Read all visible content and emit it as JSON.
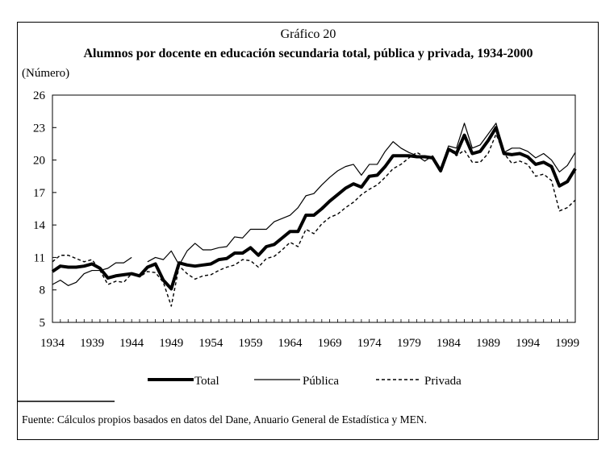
{
  "chart_data": {
    "type": "line",
    "supertitle": "Gráfico 20",
    "title": "Alumnos por docente en educación secundaria total, pública y privada, 1934-2000",
    "ylabel": "(Número)",
    "xlabel": "",
    "ylim": [
      5,
      26
    ],
    "yticks": [
      5,
      8,
      11,
      14,
      17,
      20,
      23,
      26
    ],
    "xlim": [
      1934,
      2000
    ],
    "xticks": [
      1934,
      1939,
      1944,
      1949,
      1954,
      1959,
      1964,
      1969,
      1974,
      1979,
      1984,
      1989,
      1994,
      1999
    ],
    "legend_position": "bottom",
    "series": [
      {
        "name": "Total",
        "style": "thick",
        "x": [
          1934,
          1935,
          1936,
          1937,
          1938,
          1939,
          1940,
          1941,
          1942,
          1943,
          1944,
          1945,
          1946,
          1947,
          1948,
          1949,
          1950,
          1951,
          1952,
          1953,
          1954,
          1955,
          1956,
          1957,
          1958,
          1959,
          1960,
          1961,
          1962,
          1963,
          1964,
          1965,
          1966,
          1967,
          1968,
          1969,
          1970,
          1971,
          1972,
          1973,
          1974,
          1975,
          1976,
          1977,
          1978,
          1979,
          1980,
          1981,
          1982,
          1983,
          1984,
          1985,
          1986,
          1987,
          1988,
          1989,
          1990,
          1991,
          1992,
          1993,
          1994,
          1995,
          1996,
          1997,
          1998,
          1999,
          2000
        ],
        "values": [
          9.7,
          10.2,
          10.1,
          10.1,
          10.2,
          10.4,
          10.0,
          9.1,
          9.3,
          9.4,
          9.5,
          9.3,
          10.1,
          10.4,
          8.9,
          8.1,
          10.5,
          10.3,
          10.2,
          10.3,
          10.4,
          10.8,
          10.9,
          11.4,
          11.4,
          11.9,
          11.2,
          12.0,
          12.2,
          12.8,
          13.4,
          13.4,
          14.9,
          14.9,
          15.5,
          16.2,
          16.8,
          17.4,
          17.8,
          17.5,
          18.5,
          18.6,
          19.4,
          20.4,
          20.4,
          20.4,
          20.3,
          20.3,
          20.2,
          19.0,
          21.0,
          20.6,
          22.3,
          20.6,
          20.8,
          21.8,
          23.0,
          20.6,
          20.5,
          20.6,
          20.3,
          19.6,
          19.8,
          19.4,
          17.6,
          18.0,
          19.2
        ]
      },
      {
        "name": "Pública",
        "style": "thin",
        "x": [
          1934,
          1935,
          1936,
          1937,
          1938,
          1939,
          1940,
          1941,
          1942,
          1943,
          1944,
          null,
          1946,
          1947,
          1948,
          1949,
          1950,
          1951,
          1952,
          1953,
          1954,
          1955,
          1956,
          1957,
          1958,
          1959,
          1960,
          1961,
          1962,
          1963,
          1964,
          1965,
          1966,
          1967,
          1968,
          1969,
          1970,
          1971,
          1972,
          1973,
          1974,
          1975,
          1976,
          1977,
          1978,
          1979,
          1980,
          1981,
          1982,
          1983,
          1984,
          1985,
          1986,
          1987,
          1988,
          1989,
          1990,
          1991,
          1992,
          1993,
          1994,
          1995,
          1996,
          1997,
          1998,
          1999,
          2000
        ],
        "values": [
          8.5,
          8.9,
          8.4,
          8.7,
          9.5,
          9.8,
          9.8,
          10.0,
          10.5,
          10.5,
          11.0,
          null,
          10.6,
          11.0,
          10.8,
          11.6,
          10.3,
          11.6,
          12.3,
          11.7,
          11.7,
          11.9,
          12.0,
          12.9,
          12.8,
          13.6,
          13.6,
          13.6,
          14.3,
          14.6,
          14.9,
          15.6,
          16.7,
          16.9,
          17.7,
          18.4,
          19.0,
          19.4,
          19.6,
          18.6,
          19.6,
          19.6,
          20.8,
          21.7,
          21.1,
          20.7,
          20.4,
          19.9,
          20.4,
          19.2,
          21.3,
          21.1,
          23.4,
          21.1,
          21.4,
          22.4,
          23.4,
          20.7,
          21.1,
          21.1,
          20.8,
          20.2,
          20.6,
          20.0,
          18.9,
          19.5,
          20.7
        ]
      },
      {
        "name": "Privada",
        "style": "dashed",
        "x": [
          1934,
          1935,
          1936,
          1937,
          1938,
          1939,
          1940,
          1941,
          1942,
          1943,
          1944,
          1945,
          1946,
          1947,
          1948,
          1949,
          1950,
          1951,
          1952,
          1953,
          1954,
          1955,
          1956,
          1957,
          1958,
          1959,
          1960,
          1961,
          1962,
          1963,
          1964,
          1965,
          1966,
          1967,
          1968,
          1969,
          1970,
          1971,
          1972,
          1973,
          1974,
          1975,
          1976,
          1977,
          1978,
          1979,
          1980,
          1981,
          1982,
          1983,
          1984,
          1985,
          1986,
          1987,
          1988,
          1989,
          1990,
          1991,
          1992,
          1993,
          1994,
          1995,
          1996,
          1997,
          1998,
          1999,
          2000
        ],
        "values": [
          10.6,
          11.2,
          11.2,
          10.9,
          10.6,
          10.8,
          9.8,
          8.5,
          8.8,
          8.7,
          9.5,
          9.2,
          9.7,
          9.6,
          8.7,
          6.5,
          10.2,
          9.5,
          9.0,
          9.3,
          9.4,
          9.8,
          10.1,
          10.3,
          10.8,
          10.7,
          10.1,
          10.9,
          11.1,
          11.7,
          12.4,
          12.0,
          13.6,
          13.2,
          14.1,
          14.7,
          15.0,
          15.6,
          16.1,
          16.8,
          17.3,
          17.7,
          18.4,
          19.2,
          19.6,
          20.2,
          20.7,
          20.3,
          20.3,
          19.1,
          21.0,
          20.4,
          20.9,
          19.8,
          19.8,
          20.6,
          22.4,
          20.6,
          19.7,
          19.9,
          19.6,
          18.5,
          18.7,
          18.1,
          15.3,
          15.6,
          16.3
        ]
      }
    ]
  },
  "source_note": "Fuente: Cálculos propios basados en datos del Dane, Anuario General de Estadística y MEN."
}
